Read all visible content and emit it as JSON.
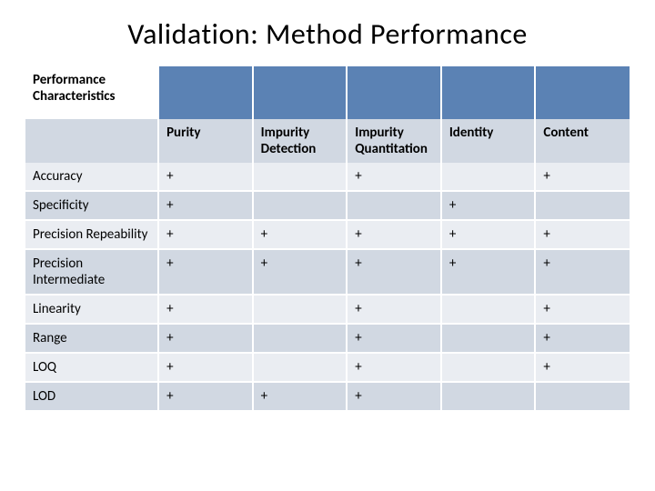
{
  "title": "Validation: Method Performance",
  "table": {
    "cornerLabel": "Performance Characteristics",
    "headerFill": "#5b82b4",
    "bandLight": "#eaedf2",
    "bandDark": "#d1d8e2",
    "columns": [
      "Purity",
      "Impurity Detection",
      "Impurity Quantitation",
      "Identity",
      "Content"
    ],
    "rows": [
      {
        "label": "Accuracy",
        "cells": [
          "+",
          "",
          "+",
          "",
          "+"
        ]
      },
      {
        "label": "Specificity",
        "cells": [
          "+",
          "",
          "",
          "+",
          ""
        ]
      },
      {
        "label": "Precision Repeability",
        "cells": [
          "+",
          "+",
          "+",
          "+",
          "+"
        ]
      },
      {
        "label": "Precision Intermediate",
        "cells": [
          "+",
          "+",
          "+",
          "+",
          "+"
        ]
      },
      {
        "label": "Linearity",
        "cells": [
          "+",
          "",
          "+",
          "",
          "+"
        ]
      },
      {
        "label": "Range",
        "cells": [
          "+",
          "",
          "+",
          "",
          "+"
        ]
      },
      {
        "label": "LOQ",
        "cells": [
          "+",
          "",
          "+",
          "",
          "+"
        ]
      },
      {
        "label": "LOD",
        "cells": [
          "+",
          "+",
          "+",
          "",
          ""
        ]
      }
    ],
    "title_fontsize": 32,
    "cell_fontsize": 15,
    "border_color": "#ffffff"
  }
}
